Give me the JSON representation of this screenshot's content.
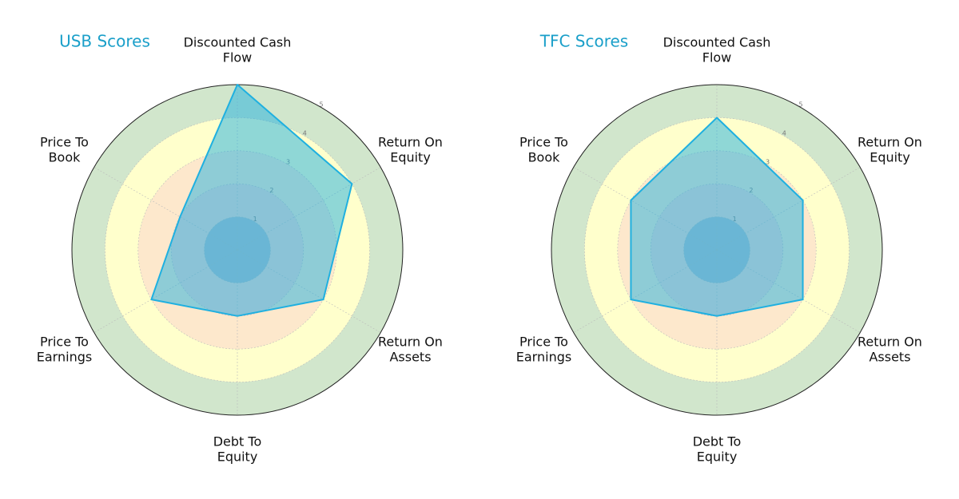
{
  "chart_data": [
    {
      "type": "radar",
      "title": "USB Scores",
      "categories": [
        "Discounted Cash Flow",
        "Return On Equity",
        "Return On Assets",
        "Debt To Equity",
        "Price To Earnings",
        "Price To Book"
      ],
      "values": [
        5,
        4,
        3,
        2,
        3,
        2
      ],
      "color": "#1fb0e0",
      "rlim": [
        0,
        5
      ],
      "rticks": [
        1,
        2,
        3,
        4,
        5
      ],
      "zone_colors": [
        "#b4bccb",
        "#f6d6cf",
        "#fde8cc",
        "#ffffcc",
        "#d1e6cc"
      ]
    },
    {
      "type": "radar",
      "title": "TFC Scores",
      "categories": [
        "Discounted Cash Flow",
        "Return On Equity",
        "Return On Assets",
        "Debt To Equity",
        "Price To Earnings",
        "Price To Book"
      ],
      "values": [
        4,
        3,
        3,
        2,
        3,
        3
      ],
      "color": "#1fb0e0",
      "rlim": [
        0,
        5
      ],
      "rticks": [
        1,
        2,
        3,
        4,
        5
      ],
      "zone_colors": [
        "#b4bccb",
        "#f6d6cf",
        "#fde8cc",
        "#ffffcc",
        "#d1e6cc"
      ]
    }
  ]
}
